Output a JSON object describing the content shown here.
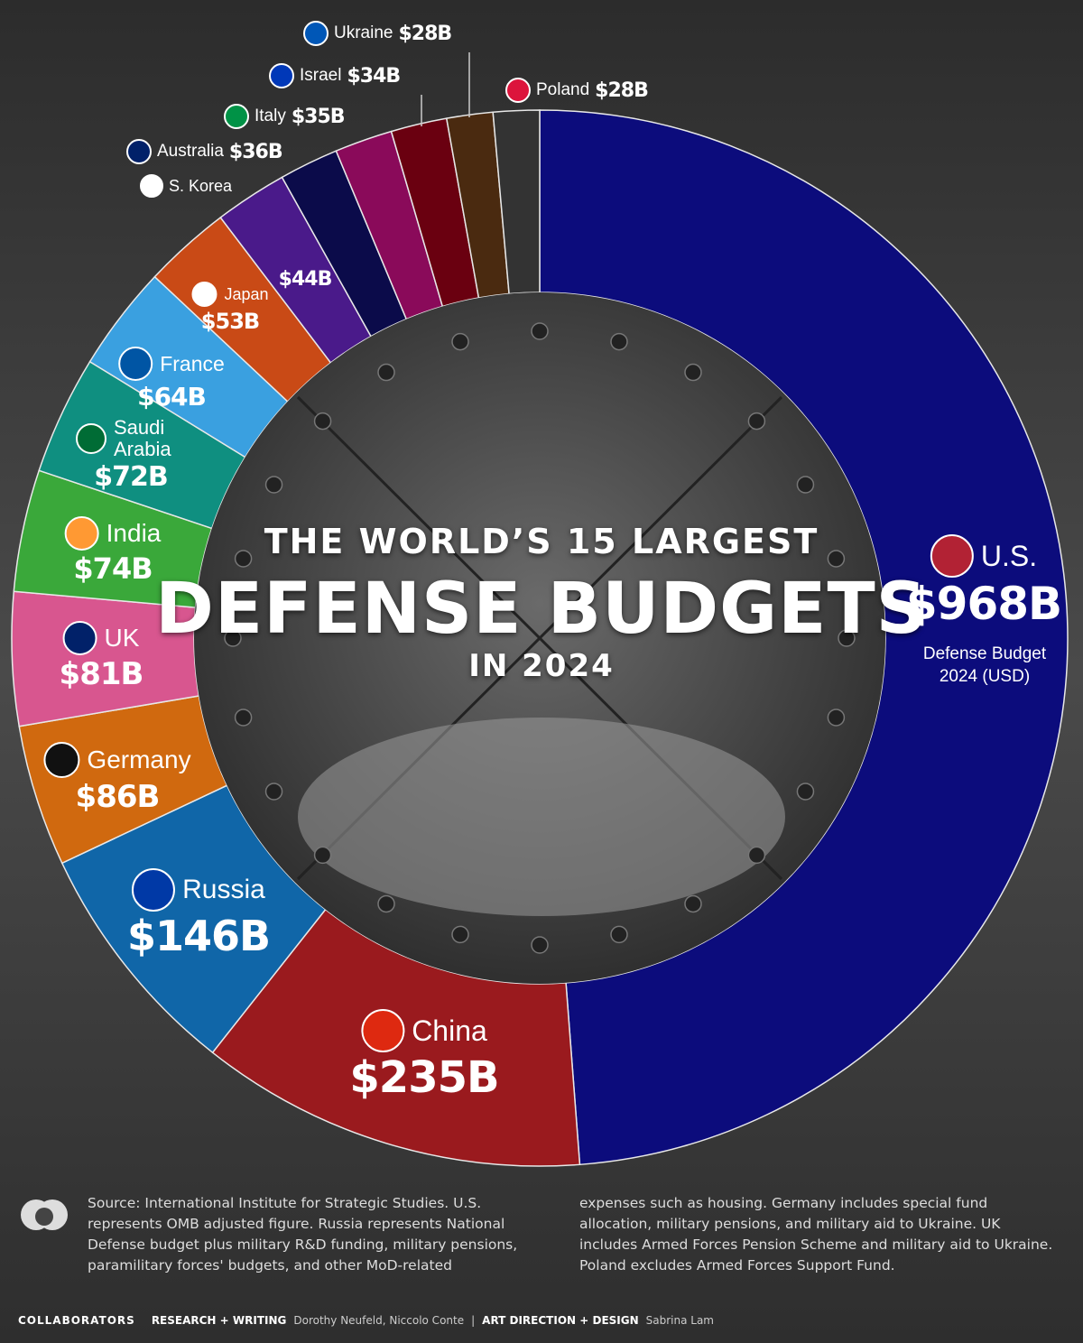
{
  "chart_data": {
    "type": "donut",
    "title": "THE WORLD’S 15 LARGEST",
    "headline": "DEFENSE BUDGETS",
    "subtitle": "IN 2024",
    "annotation": "Defense Budget 2024 (USD)",
    "categories": [
      "U.S.",
      "China",
      "Russia",
      "Germany",
      "UK",
      "India",
      "Saudi Arabia",
      "France",
      "Japan",
      "S. Korea",
      "Australia",
      "Italy",
      "Israel",
      "Ukraine",
      "Poland"
    ],
    "values": [
      968,
      235,
      146,
      86,
      81,
      74,
      72,
      64,
      53,
      44,
      36,
      35,
      34,
      28,
      28
    ],
    "value_labels": [
      "$968B",
      "$235B",
      "$146B",
      "$86B",
      "$81B",
      "$74B",
      "$72B",
      "$64B",
      "$53B",
      "$44B",
      "$36B",
      "$35B",
      "$34B",
      "$28B",
      "$28B"
    ],
    "colors": [
      "#0c0c7c",
      "#9a1a1e",
      "#1066a8",
      "#d0690f",
      "#d8568f",
      "#3aa83a",
      "#0f8f80",
      "#3aa0e0",
      "#c94a16",
      "#4a1a8a",
      "#0b0b4a",
      "#8a0a5a",
      "#6a0010",
      "#4a2a10",
      "#333333"
    ],
    "notes": [
      "Source: International Institute for Strategic Studies. U.S. represents OMB adjusted figure. Russia represents National Defense budget plus military R&D funding, military pensions, paramilitary  forces' budgets, and other MoD-related",
      "expenses such as housing. Germany includes special fund allocation, military pensions, and military aid to Ukraine. UK includes Armed Forces Pension Scheme and military aid to Ukraine. Poland excludes Armed Forces Support Fund."
    ]
  },
  "credits": {
    "label": "COLLABORATORS",
    "research_label": "RESEARCH + WRITING",
    "research": "Dorothy Neufeld, Niccolo Conte",
    "design_label": "ART DIRECTION + DESIGN",
    "design": "Sabrina Lam"
  }
}
